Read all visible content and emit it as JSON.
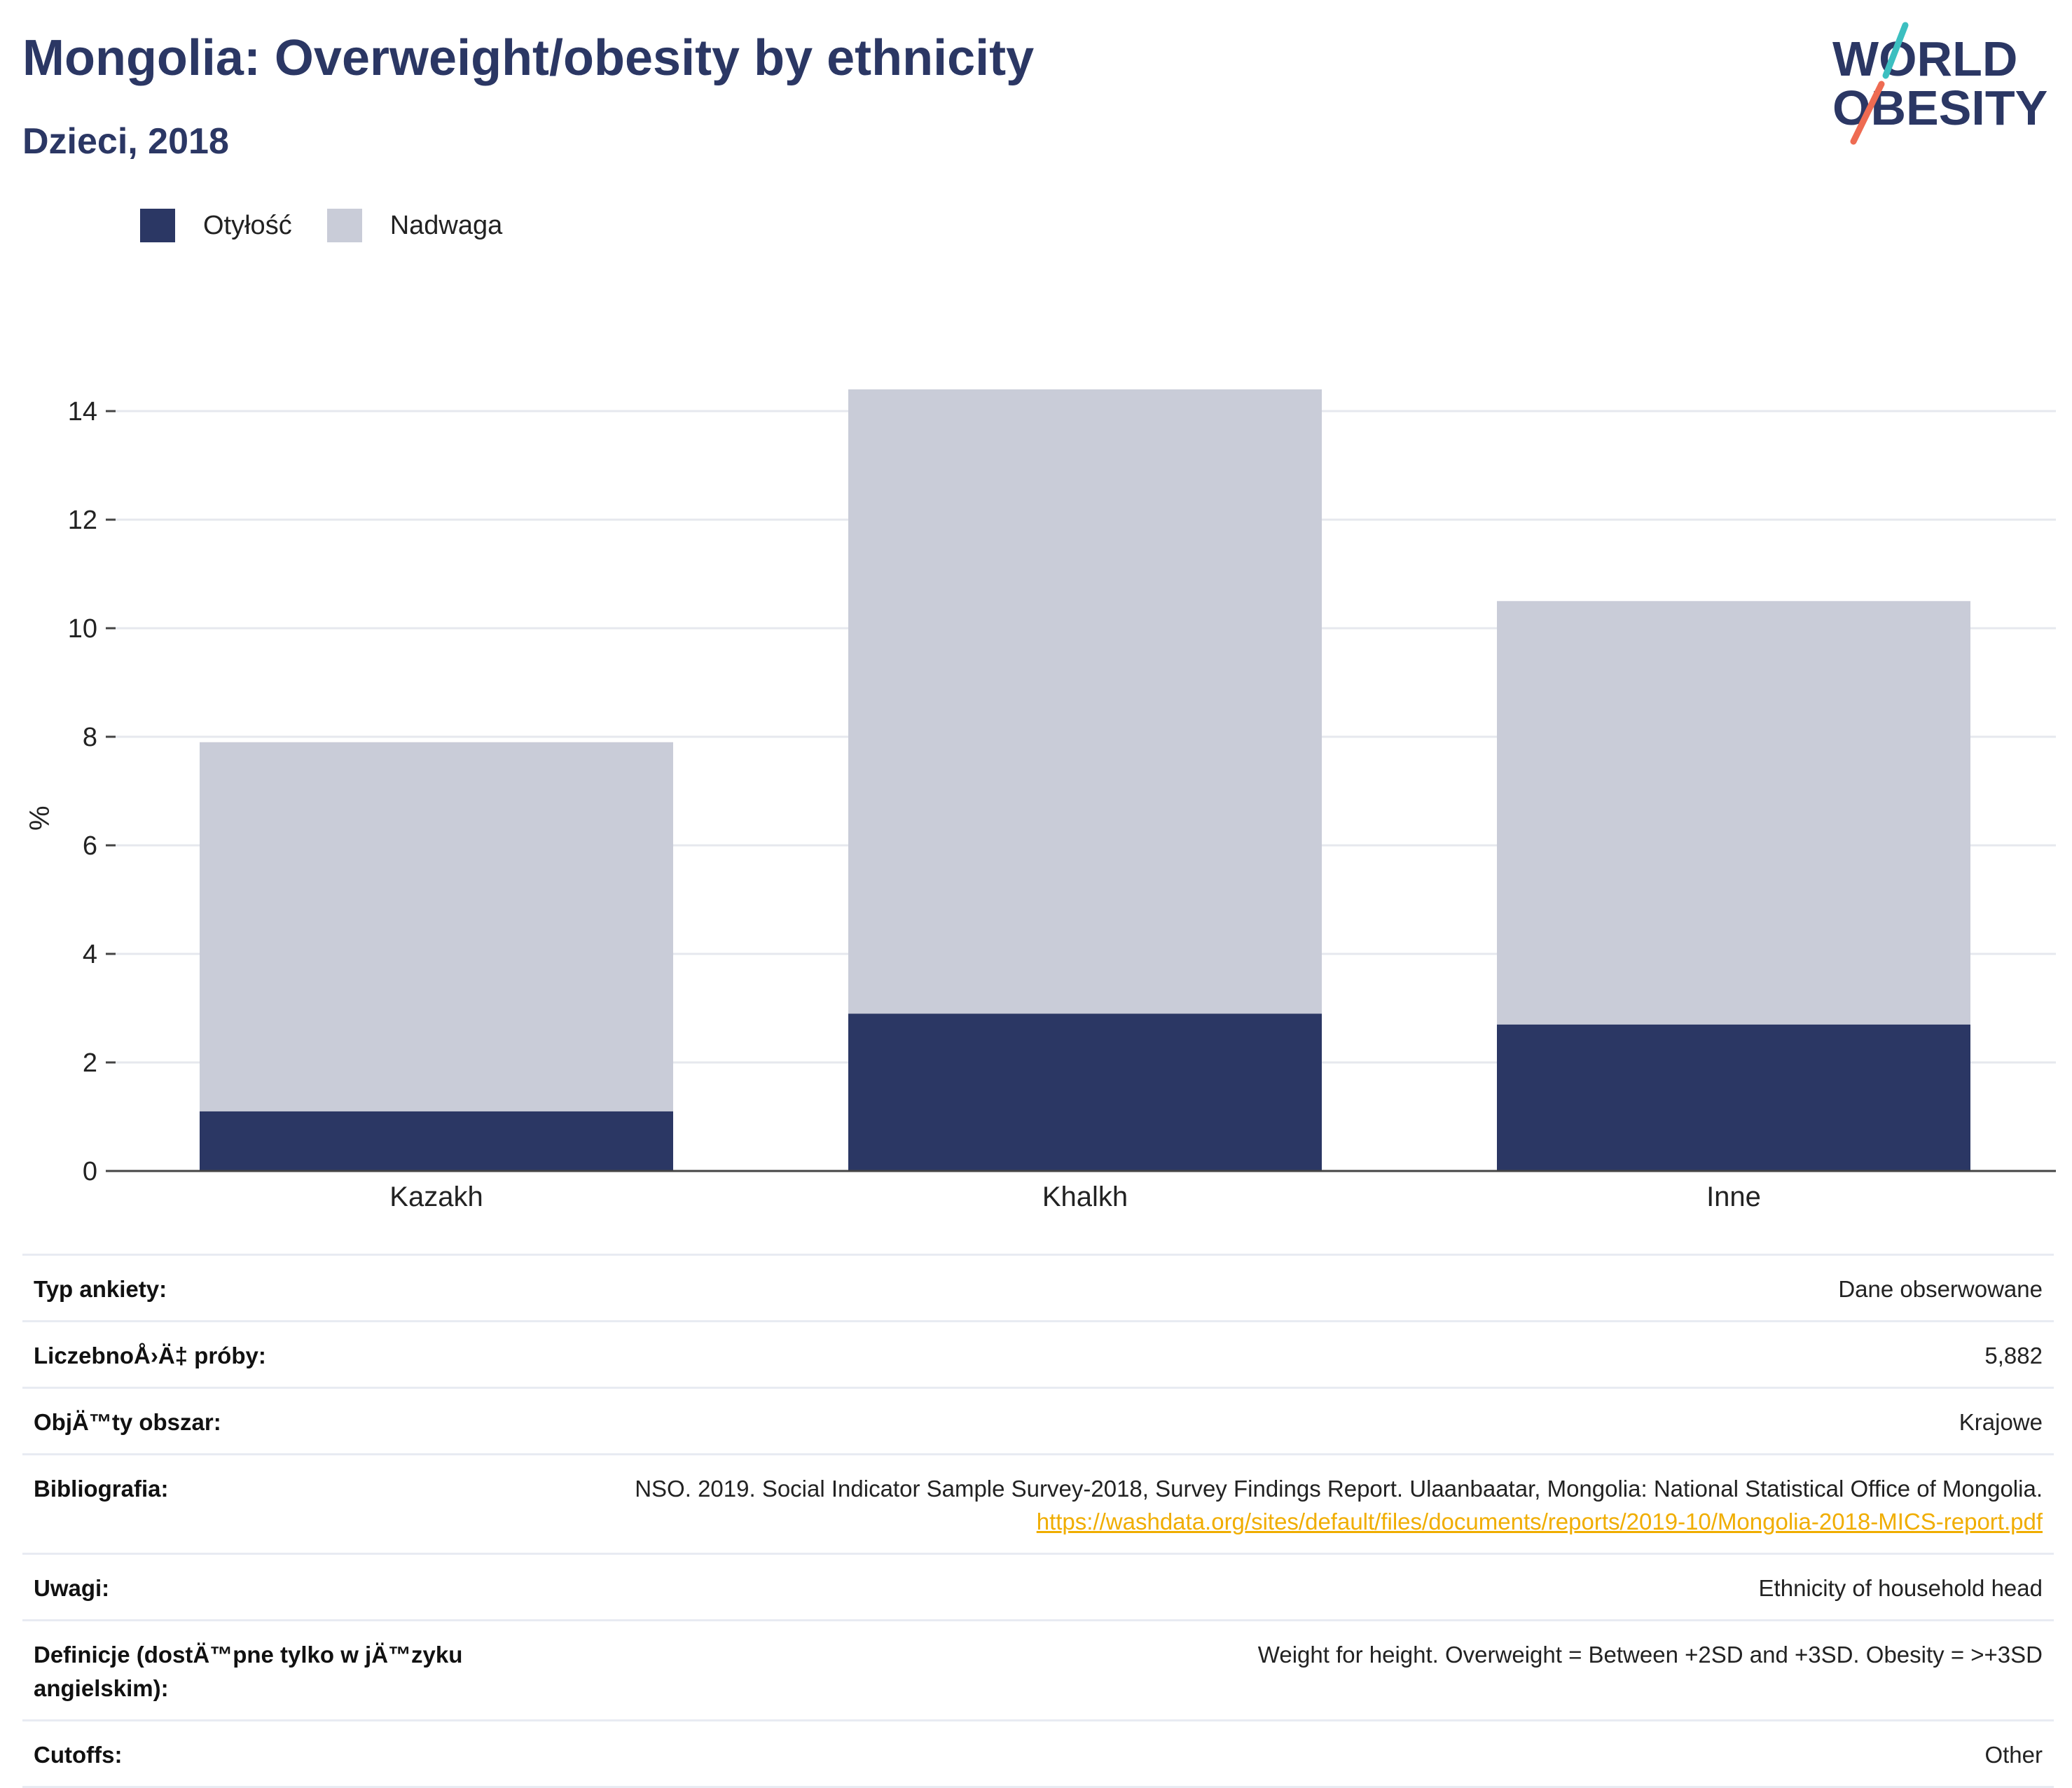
{
  "header": {
    "title": "Mongolia: Overweight/obesity by ethnicity",
    "subtitle": "Dzieci, 2018"
  },
  "logo": {
    "line1": "WORLD",
    "line2": "OBESITY",
    "colors": {
      "text": "#2b3764",
      "teal": "#3cbfc0",
      "coral": "#ee6b52"
    }
  },
  "legend": [
    {
      "label": "Otyłość",
      "color": "#2b3764"
    },
    {
      "label": "Nadwaga",
      "color": "#c9ccd8"
    }
  ],
  "chart_data": {
    "type": "bar",
    "stacked": true,
    "categories": [
      "Kazakh",
      "Khalkh",
      "Inne"
    ],
    "series": [
      {
        "name": "Otyłość",
        "values": [
          1.1,
          2.9,
          2.7
        ],
        "color": "#2b3764"
      },
      {
        "name": "Nadwaga",
        "values": [
          6.8,
          11.5,
          7.8
        ],
        "color": "#c9ccd8"
      }
    ],
    "ylabel": "%",
    "ylim": [
      0,
      15
    ],
    "yticks": [
      0,
      2,
      4,
      6,
      8,
      10,
      12,
      14
    ],
    "grid": true,
    "legend_position": "top-left"
  },
  "info": [
    {
      "label": "Typ ankiety:",
      "value": "Dane obserwowane"
    },
    {
      "label": "LiczebnoÅ›Ä‡ próby:",
      "value": "5,882"
    },
    {
      "label": "ObjÄ™ty obszar:",
      "value": "Krajowe"
    },
    {
      "label": "Bibliografia:",
      "value": "NSO. 2019. Social Indicator Sample Survey-2018, Survey Findings Report. Ulaanbaatar, Mongolia: National Statistical Office of Mongolia.",
      "link": "https://washdata.org/sites/default/files/documents/reports/2019-10/Mongolia-2018-MICS-report.pdf"
    },
    {
      "label": "Uwagi:",
      "value": "Ethnicity of household head"
    },
    {
      "label": "Definicje (dostÄ™pne tylko w jÄ™zyku angielskim):",
      "value": "Weight for height. Overweight = Between +2SD and +3SD. Obesity = >+3SD"
    },
    {
      "label": "Cutoffs:",
      "value": "Other"
    }
  ]
}
